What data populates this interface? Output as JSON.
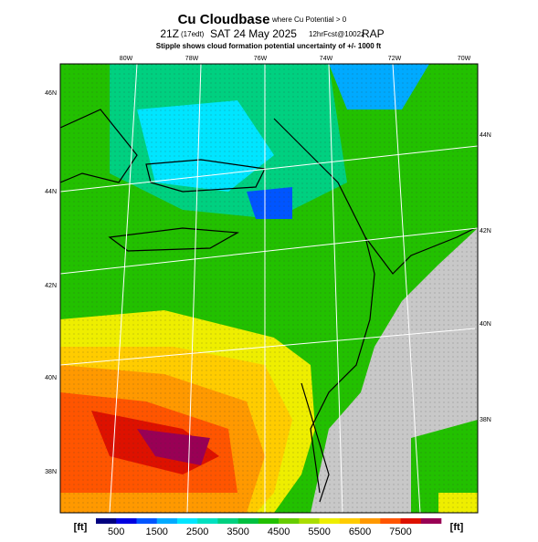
{
  "header": {
    "title": "Cu Cloudbase",
    "title_note": "where Cu Potential > 0",
    "time": "21Z",
    "local_time": "(17edt)",
    "date": "SAT 24 May 2025",
    "forecast": "12hrFcst@1002z",
    "model": "RAP",
    "subtitle": "Stipple shows cloud formation potential uncertainty of +/- 1000 ft"
  },
  "lon_labels": [
    "80W",
    "78W",
    "76W",
    "74W",
    "72W",
    "70W"
  ],
  "lat_labels_left": [
    "46N",
    "44N",
    "42N",
    "40N",
    "38N"
  ],
  "lat_labels_right": [
    "44N",
    "42N",
    "40N",
    "38N"
  ],
  "colorbar": {
    "unit_left": "[ft]",
    "unit_right": "[ft]",
    "labels": [
      "500",
      "1500",
      "2500",
      "3500",
      "4500",
      "5500",
      "6500",
      "7500"
    ],
    "colors": [
      "#00007f",
      "#0000e0",
      "#0055ff",
      "#00aaff",
      "#00e5ff",
      "#00e0c0",
      "#00d080",
      "#00c040",
      "#22c000",
      "#66cc00",
      "#aadd00",
      "#eeee00",
      "#ffcc00",
      "#ff9900",
      "#ff5500",
      "#dd1100",
      "#990055"
    ]
  }
}
